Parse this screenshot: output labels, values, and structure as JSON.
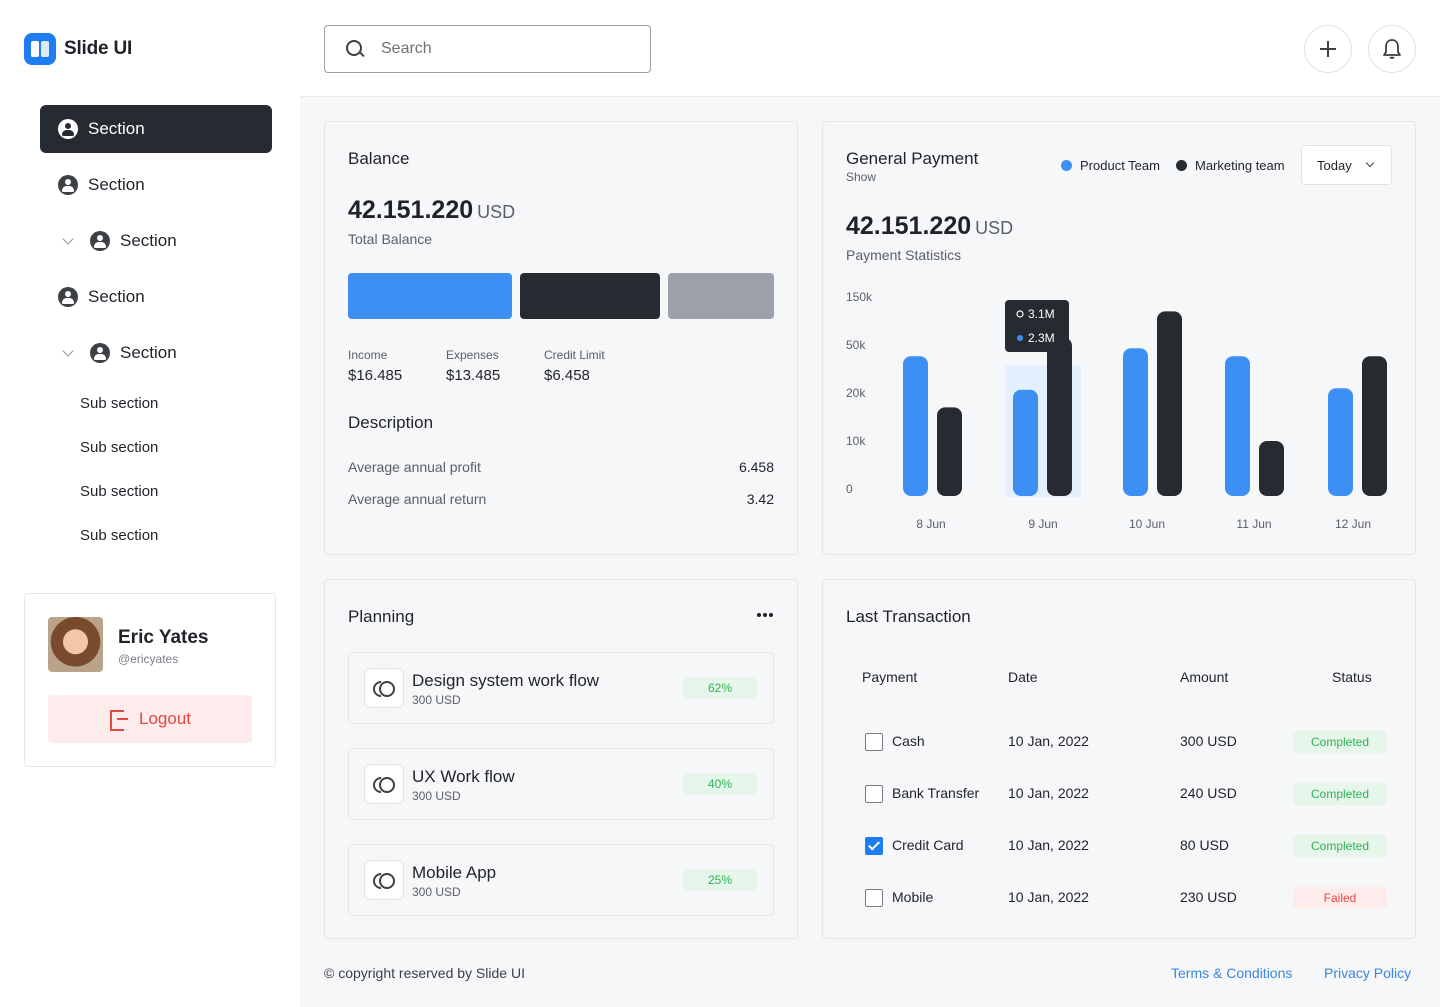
{
  "app": {
    "name": "Slide UI"
  },
  "sidebar": {
    "items": [
      {
        "label": "Section"
      },
      {
        "label": "Section"
      },
      {
        "label": "Section"
      },
      {
        "label": "Section"
      },
      {
        "label": "Section"
      }
    ],
    "sub_items": [
      "Sub section",
      "Sub section",
      "Sub section",
      "Sub section"
    ]
  },
  "profile": {
    "name": "Eric Yates",
    "handle": "@ericyates",
    "logout_label": "Logout"
  },
  "search": {
    "placeholder": "Search"
  },
  "balance": {
    "title": "Balance",
    "amount": "42.151.220",
    "unit": "USD",
    "caption": "Total Balance",
    "split": [
      {
        "name": "Income",
        "value": "$16.485",
        "color": "#3d8ff3"
      },
      {
        "name": "Expenses",
        "value": "$13.485",
        "color": "#262b31"
      },
      {
        "name": "Credit Limit",
        "value": "$6.458",
        "color": "#9ca1ab"
      }
    ],
    "description_title": "Description",
    "description": [
      {
        "key": "Average annual profit",
        "value": "6.458"
      },
      {
        "key": "Average annual return",
        "value": "3.42"
      }
    ]
  },
  "payment": {
    "title": "General Payment",
    "subtitle": "Show",
    "amount": "42.151.220",
    "unit": "USD",
    "caption": "Payment Statistics",
    "period": "Today",
    "legend": [
      {
        "name": "Product Team",
        "color": "#3d8ff3"
      },
      {
        "name": "Marketing team",
        "color": "#262b31"
      }
    ],
    "tooltip": {
      "a": "3.1M",
      "b": "2.3M"
    }
  },
  "chart_data": {
    "type": "bar",
    "categories": [
      "8 Jun",
      "9 Jun",
      "10 Jun",
      "11 Jun",
      "12 Jun"
    ],
    "y_ticks": [
      "150k",
      "50k",
      "20k",
      "10k",
      "0"
    ],
    "series": [
      {
        "name": "Product Team",
        "values": [
          43,
          22,
          48,
          43,
          23
        ]
      },
      {
        "name": "Marketing team",
        "values": [
          17,
          65,
          120,
          10,
          43
        ]
      }
    ],
    "highlight_index": 1,
    "legend_position": "top-right",
    "grid": false
  },
  "planning": {
    "title": "Planning",
    "items": [
      {
        "name": "Design system work flow",
        "amount": "300 USD",
        "progress": "62%"
      },
      {
        "name": "UX Work flow",
        "amount": "300 USD",
        "progress": "40%"
      },
      {
        "name": "Mobile App",
        "amount": "300 USD",
        "progress": "25%"
      }
    ]
  },
  "transactions": {
    "title": "Last Transaction",
    "headers": [
      "Payment",
      "Date",
      "Amount",
      "Status"
    ],
    "rows": [
      {
        "payment": "Cash",
        "date": "10 Jan, 2022",
        "amount": "300 USD",
        "status": "Completed",
        "checked": false
      },
      {
        "payment": "Bank Transfer",
        "date": "10 Jan, 2022",
        "amount": "240 USD",
        "status": "Completed",
        "checked": false
      },
      {
        "payment": "Credit Card",
        "date": "10 Jan, 2022",
        "amount": "80 USD",
        "status": "Completed",
        "checked": true
      },
      {
        "payment": "Mobile",
        "date": "10 Jan, 2022",
        "amount": "230 USD",
        "status": "Failed",
        "checked": false
      }
    ]
  },
  "footer": {
    "copyright": "© copyright reserved by Slide UI",
    "terms": "Terms & Conditions",
    "privacy": "Privacy Policy"
  }
}
